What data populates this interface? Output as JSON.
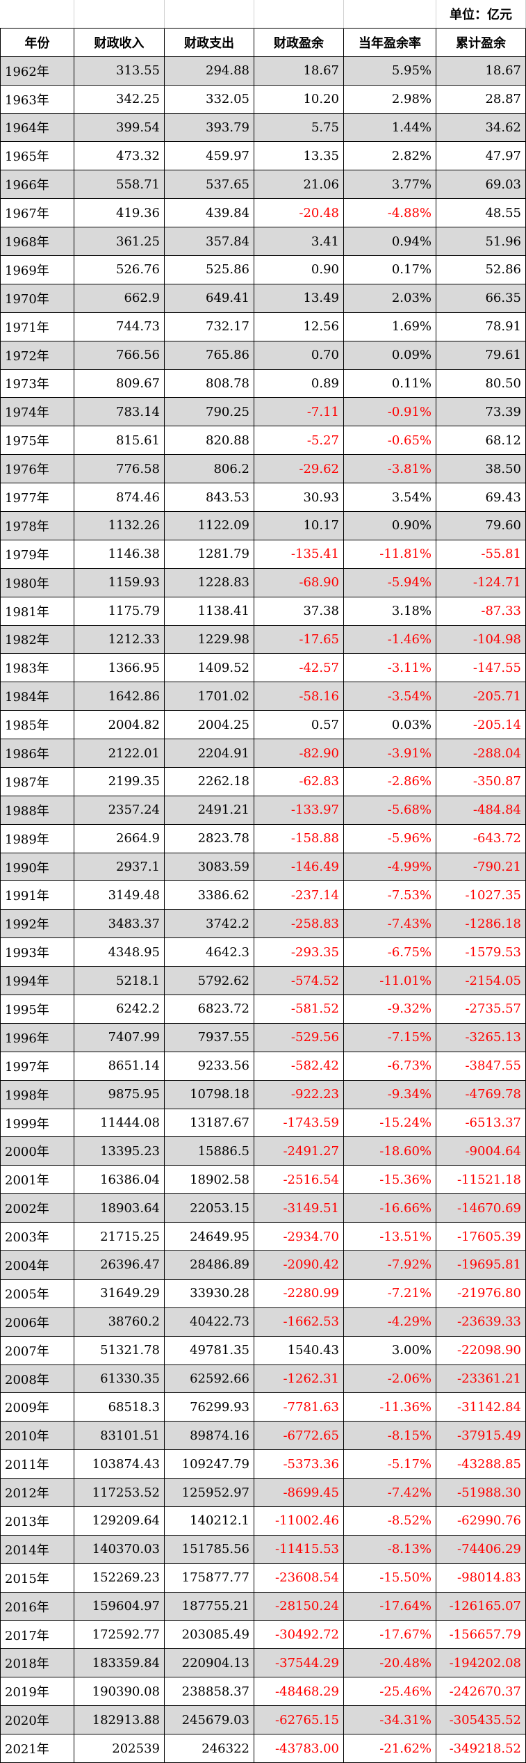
{
  "table": {
    "unit": "单位：亿元",
    "header": [
      "年份",
      "财政收入",
      "财政支出",
      "财政盈余",
      "当年盈余率",
      "累计盈余"
    ],
    "rows": [
      [
        "1962年",
        "313.55",
        "294.88",
        "18.67",
        "5.95%",
        "18.67"
      ],
      [
        "1963年",
        "342.25",
        "332.05",
        "10.20",
        "2.98%",
        "28.87"
      ],
      [
        "1964年",
        "399.54",
        "393.79",
        "5.75",
        "1.44%",
        "34.62"
      ],
      [
        "1965年",
        "473.32",
        "459.97",
        "13.35",
        "2.82%",
        "47.97"
      ],
      [
        "1966年",
        "558.71",
        "537.65",
        "21.06",
        "3.77%",
        "69.03"
      ],
      [
        "1967年",
        "419.36",
        "439.84",
        "-20.48",
        "-4.88%",
        "48.55"
      ],
      [
        "1968年",
        "361.25",
        "357.84",
        "3.41",
        "0.94%",
        "51.96"
      ],
      [
        "1969年",
        "526.76",
        "525.86",
        "0.90",
        "0.17%",
        "52.86"
      ],
      [
        "1970年",
        "662.9",
        "649.41",
        "13.49",
        "2.03%",
        "66.35"
      ],
      [
        "1971年",
        "744.73",
        "732.17",
        "12.56",
        "1.69%",
        "78.91"
      ],
      [
        "1972年",
        "766.56",
        "765.86",
        "0.70",
        "0.09%",
        "79.61"
      ],
      [
        "1973年",
        "809.67",
        "808.78",
        "0.89",
        "0.11%",
        "80.50"
      ],
      [
        "1974年",
        "783.14",
        "790.25",
        "-7.11",
        "-0.91%",
        "73.39"
      ],
      [
        "1975年",
        "815.61",
        "820.88",
        "-5.27",
        "-0.65%",
        "68.12"
      ],
      [
        "1976年",
        "776.58",
        "806.2",
        "-29.62",
        "-3.81%",
        "38.50"
      ],
      [
        "1977年",
        "874.46",
        "843.53",
        "30.93",
        "3.54%",
        "69.43"
      ],
      [
        "1978年",
        "1132.26",
        "1122.09",
        "10.17",
        "0.90%",
        "79.60"
      ],
      [
        "1979年",
        "1146.38",
        "1281.79",
        "-135.41",
        "-11.81%",
        "-55.81"
      ],
      [
        "1980年",
        "1159.93",
        "1228.83",
        "-68.90",
        "-5.94%",
        "-124.71"
      ],
      [
        "1981年",
        "1175.79",
        "1138.41",
        "37.38",
        "3.18%",
        "-87.33"
      ],
      [
        "1982年",
        "1212.33",
        "1229.98",
        "-17.65",
        "-1.46%",
        "-104.98"
      ],
      [
        "1983年",
        "1366.95",
        "1409.52",
        "-42.57",
        "-3.11%",
        "-147.55"
      ],
      [
        "1984年",
        "1642.86",
        "1701.02",
        "-58.16",
        "-3.54%",
        "-205.71"
      ],
      [
        "1985年",
        "2004.82",
        "2004.25",
        "0.57",
        "0.03%",
        "-205.14"
      ],
      [
        "1986年",
        "2122.01",
        "2204.91",
        "-82.90",
        "-3.91%",
        "-288.04"
      ],
      [
        "1987年",
        "2199.35",
        "2262.18",
        "-62.83",
        "-2.86%",
        "-350.87"
      ],
      [
        "1988年",
        "2357.24",
        "2491.21",
        "-133.97",
        "-5.68%",
        "-484.84"
      ],
      [
        "1989年",
        "2664.9",
        "2823.78",
        "-158.88",
        "-5.96%",
        "-643.72"
      ],
      [
        "1990年",
        "2937.1",
        "3083.59",
        "-146.49",
        "-4.99%",
        "-790.21"
      ],
      [
        "1991年",
        "3149.48",
        "3386.62",
        "-237.14",
        "-7.53%",
        "-1027.35"
      ],
      [
        "1992年",
        "3483.37",
        "3742.2",
        "-258.83",
        "-7.43%",
        "-1286.18"
      ],
      [
        "1993年",
        "4348.95",
        "4642.3",
        "-293.35",
        "-6.75%",
        "-1579.53"
      ],
      [
        "1994年",
        "5218.1",
        "5792.62",
        "-574.52",
        "-11.01%",
        "-2154.05"
      ],
      [
        "1995年",
        "6242.2",
        "6823.72",
        "-581.52",
        "-9.32%",
        "-2735.57"
      ],
      [
        "1996年",
        "7407.99",
        "7937.55",
        "-529.56",
        "-7.15%",
        "-3265.13"
      ],
      [
        "1997年",
        "8651.14",
        "9233.56",
        "-582.42",
        "-6.73%",
        "-3847.55"
      ],
      [
        "1998年",
        "9875.95",
        "10798.18",
        "-922.23",
        "-9.34%",
        "-4769.78"
      ],
      [
        "1999年",
        "11444.08",
        "13187.67",
        "-1743.59",
        "-15.24%",
        "-6513.37"
      ],
      [
        "2000年",
        "13395.23",
        "15886.5",
        "-2491.27",
        "-18.60%",
        "-9004.64"
      ],
      [
        "2001年",
        "16386.04",
        "18902.58",
        "-2516.54",
        "-15.36%",
        "-11521.18"
      ],
      [
        "2002年",
        "18903.64",
        "22053.15",
        "-3149.51",
        "-16.66%",
        "-14670.69"
      ],
      [
        "2003年",
        "21715.25",
        "24649.95",
        "-2934.70",
        "-13.51%",
        "-17605.39"
      ],
      [
        "2004年",
        "26396.47",
        "28486.89",
        "-2090.42",
        "-7.92%",
        "-19695.81"
      ],
      [
        "2005年",
        "31649.29",
        "33930.28",
        "-2280.99",
        "-7.21%",
        "-21976.80"
      ],
      [
        "2006年",
        "38760.2",
        "40422.73",
        "-1662.53",
        "-4.29%",
        "-23639.33"
      ],
      [
        "2007年",
        "51321.78",
        "49781.35",
        "1540.43",
        "3.00%",
        "-22098.90"
      ],
      [
        "2008年",
        "61330.35",
        "62592.66",
        "-1262.31",
        "-2.06%",
        "-23361.21"
      ],
      [
        "2009年",
        "68518.3",
        "76299.93",
        "-7781.63",
        "-11.36%",
        "-31142.84"
      ],
      [
        "2010年",
        "83101.51",
        "89874.16",
        "-6772.65",
        "-8.15%",
        "-37915.49"
      ],
      [
        "2011年",
        "103874.43",
        "109247.79",
        "-5373.36",
        "-5.17%",
        "-43288.85"
      ],
      [
        "2012年",
        "117253.52",
        "125952.97",
        "-8699.45",
        "-7.42%",
        "-51988.30"
      ],
      [
        "2013年",
        "129209.64",
        "140212.1",
        "-11002.46",
        "-8.52%",
        "-62990.76"
      ],
      [
        "2014年",
        "140370.03",
        "151785.56",
        "-11415.53",
        "-8.13%",
        "-74406.29"
      ],
      [
        "2015年",
        "152269.23",
        "175877.77",
        "-23608.54",
        "-15.50%",
        "-98014.83"
      ],
      [
        "2016年",
        "159604.97",
        "187755.21",
        "-28150.24",
        "-17.64%",
        "-126165.07"
      ],
      [
        "2017年",
        "172592.77",
        "203085.49",
        "-30492.72",
        "-17.67%",
        "-156657.79"
      ],
      [
        "2018年",
        "183359.84",
        "220904.13",
        "-37544.29",
        "-20.48%",
        "-194202.08"
      ],
      [
        "2019年",
        "190390.08",
        "238858.37",
        "-48468.29",
        "-25.46%",
        "-242670.37"
      ],
      [
        "2020年",
        "182913.88",
        "245679.03",
        "-62765.15",
        "-34.31%",
        "-305435.52"
      ],
      [
        "2021年",
        "202539",
        "246322",
        "-43783.00",
        "-21.62%",
        "-349218.52"
      ]
    ]
  }
}
